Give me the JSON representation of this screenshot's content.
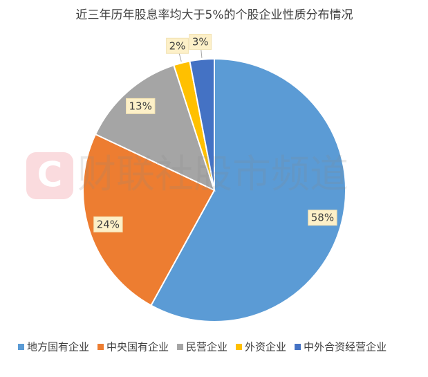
{
  "chart_data": {
    "type": "pie",
    "title": "近三年历年股息率均大于5%的个股企业性质分布情况",
    "watermark": "财联社股市频道",
    "categories": [
      "地方国有企业",
      "中央国有企业",
      "民营企业",
      "外资企业",
      "中外合资经营企业"
    ],
    "values": [
      58,
      24,
      13,
      2,
      3
    ],
    "value_labels": [
      "58%",
      "24%",
      "13%",
      "2%",
      "3%"
    ],
    "colors": [
      "#5b9bd5",
      "#ed7d31",
      "#a5a5a5",
      "#ffc000",
      "#4472c4"
    ],
    "legend": "bottom"
  }
}
